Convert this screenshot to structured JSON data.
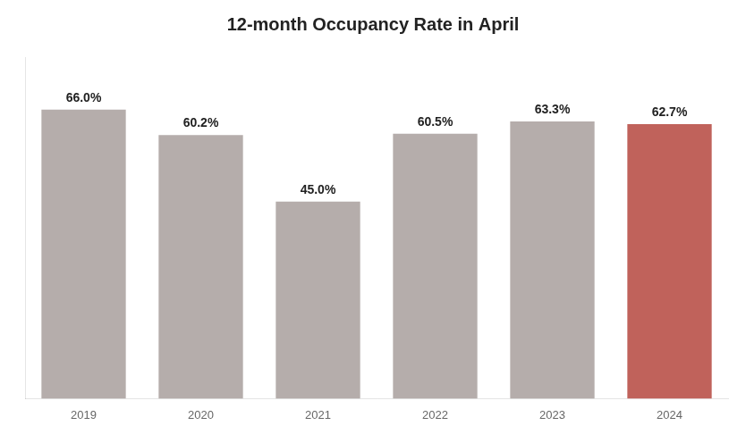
{
  "chart_data": {
    "type": "bar",
    "title": "12-month Occupancy Rate in April",
    "categories": [
      "2019",
      "2020",
      "2021",
      "2022",
      "2023",
      "2024"
    ],
    "values": [
      66.0,
      60.2,
      45.0,
      60.5,
      63.3,
      62.7
    ],
    "value_labels": [
      "66.0%",
      "60.2%",
      "45.0%",
      "60.5%",
      "63.3%",
      "62.7%"
    ],
    "colors": [
      "#b5adab",
      "#b5adab",
      "#b5adab",
      "#b5adab",
      "#b5adab",
      "#c0625b"
    ],
    "ylim": [
      0,
      78
    ],
    "grid": false,
    "data_labels": true,
    "tick_labels": "x"
  }
}
